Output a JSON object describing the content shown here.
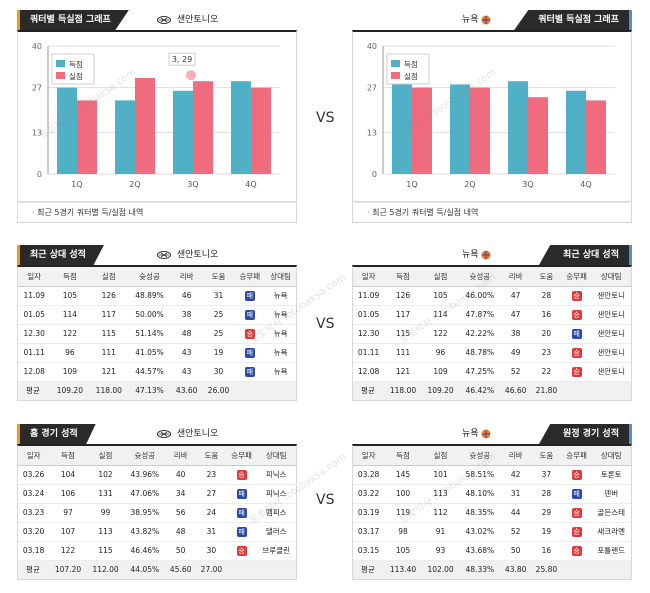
{
  "vs_label": "VS",
  "watermark": "토토박사 totobaksa.com",
  "panels": {
    "chart_left": {
      "title": "쿼터별 득실점 그래프",
      "team": "샌안토니오"
    },
    "chart_right": {
      "title": "쿼터별 득실점 그래프",
      "team": "뉴욕"
    },
    "recent_left": {
      "title": "최근 상대 성적",
      "team": "샌안토니오"
    },
    "recent_right": {
      "title": "최근 상대 성적",
      "team": "뉴욕"
    },
    "home_left": {
      "title": "홈 경기 성적",
      "team": "샌안토니오"
    },
    "away_right": {
      "title": "원정 경기 성적",
      "team": "뉴욕"
    }
  },
  "chart_note": "최근 5경기 쿼터별 득/실점 내역",
  "colors": {
    "scored": "#4fb0c6",
    "allowed": "#f06b7d",
    "win": "#2a4aa8",
    "loss": "#e03a3a",
    "accent_left": "#f39c12",
    "accent_right": "#4a90e2"
  },
  "chart_data": [
    {
      "type": "bar",
      "categories": [
        "1Q",
        "2Q",
        "3Q",
        "4Q"
      ],
      "series": [
        {
          "name": "득점",
          "values": [
            27,
            23,
            26,
            29
          ]
        },
        {
          "name": "실점",
          "values": [
            23,
            30,
            29,
            27
          ]
        }
      ],
      "ylim": [
        0,
        40
      ],
      "yticks": [
        0,
        13,
        27,
        40
      ],
      "legend": "top-left",
      "annotation": {
        "text": "3, 29",
        "category": "3Q",
        "series": "실점",
        "value": 29
      }
    },
    {
      "type": "bar",
      "categories": [
        "1Q",
        "2Q",
        "3Q",
        "4Q"
      ],
      "series": [
        {
          "name": "득점",
          "values": [
            29,
            28,
            29,
            26
          ]
        },
        {
          "name": "실점",
          "values": [
            27,
            27,
            24,
            23
          ]
        }
      ],
      "ylim": [
        0,
        40
      ],
      "yticks": [
        0,
        13,
        27,
        40
      ],
      "legend": "top-left"
    }
  ],
  "table_headers": [
    "일자",
    "득점",
    "실점",
    "슛성공",
    "리바",
    "도움",
    "승무패",
    "상대팀"
  ],
  "recent_left_rows": [
    [
      "11.09",
      "105",
      "126",
      "48.89%",
      "46",
      "31",
      "패",
      "뉴욕"
    ],
    [
      "01.05",
      "114",
      "117",
      "50.00%",
      "38",
      "25",
      "패",
      "뉴욕"
    ],
    [
      "12.30",
      "122",
      "115",
      "51.14%",
      "48",
      "25",
      "승",
      "뉴욕"
    ],
    [
      "01.11",
      "96",
      "111",
      "41.05%",
      "43",
      "19",
      "패",
      "뉴욕"
    ],
    [
      "12.08",
      "109",
      "121",
      "44.57%",
      "43",
      "30",
      "패",
      "뉴욕"
    ]
  ],
  "recent_left_avg": [
    "평균",
    "109.20",
    "118.00",
    "47.13%",
    "43.60",
    "26.00"
  ],
  "recent_right_rows": [
    [
      "11.09",
      "126",
      "105",
      "46.00%",
      "47",
      "28",
      "승",
      "샌안토니"
    ],
    [
      "01.05",
      "117",
      "114",
      "47.87%",
      "47",
      "16",
      "승",
      "샌안토니"
    ],
    [
      "12.30",
      "115",
      "122",
      "42.22%",
      "38",
      "20",
      "패",
      "샌안토니"
    ],
    [
      "01.11",
      "111",
      "96",
      "48.78%",
      "49",
      "23",
      "승",
      "샌안토니"
    ],
    [
      "12.08",
      "121",
      "109",
      "47.25%",
      "52",
      "22",
      "승",
      "샌안토니"
    ]
  ],
  "recent_right_avg": [
    "평균",
    "118.00",
    "109.20",
    "46.42%",
    "46.60",
    "21.80"
  ],
  "home_left_rows": [
    [
      "03.26",
      "104",
      "102",
      "43.96%",
      "40",
      "23",
      "승",
      "피닉스"
    ],
    [
      "03.24",
      "106",
      "131",
      "47.06%",
      "34",
      "27",
      "패",
      "피닉스"
    ],
    [
      "03.23",
      "97",
      "99",
      "38.95%",
      "56",
      "24",
      "패",
      "멤피스"
    ],
    [
      "03.20",
      "107",
      "113",
      "43.82%",
      "48",
      "31",
      "패",
      "댈러스"
    ],
    [
      "03.18",
      "122",
      "115",
      "46.46%",
      "50",
      "30",
      "승",
      "브루클린"
    ]
  ],
  "home_left_avg": [
    "평균",
    "107.20",
    "112.00",
    "44.05%",
    "45.60",
    "27.00"
  ],
  "away_right_rows": [
    [
      "03.28",
      "145",
      "101",
      "58.51%",
      "42",
      "37",
      "승",
      "토론토"
    ],
    [
      "03.22",
      "100",
      "113",
      "48.10%",
      "31",
      "28",
      "패",
      "덴버"
    ],
    [
      "03.19",
      "119",
      "112",
      "48.35%",
      "44",
      "29",
      "승",
      "골든스테"
    ],
    [
      "03.17",
      "98",
      "91",
      "43.02%",
      "52",
      "19",
      "승",
      "새크라멘"
    ],
    [
      "03.15",
      "105",
      "93",
      "43.68%",
      "50",
      "16",
      "승",
      "포틀랜드"
    ]
  ],
  "away_right_avg": [
    "평균",
    "113.40",
    "102.00",
    "48.33%",
    "43.80",
    "25.80"
  ]
}
